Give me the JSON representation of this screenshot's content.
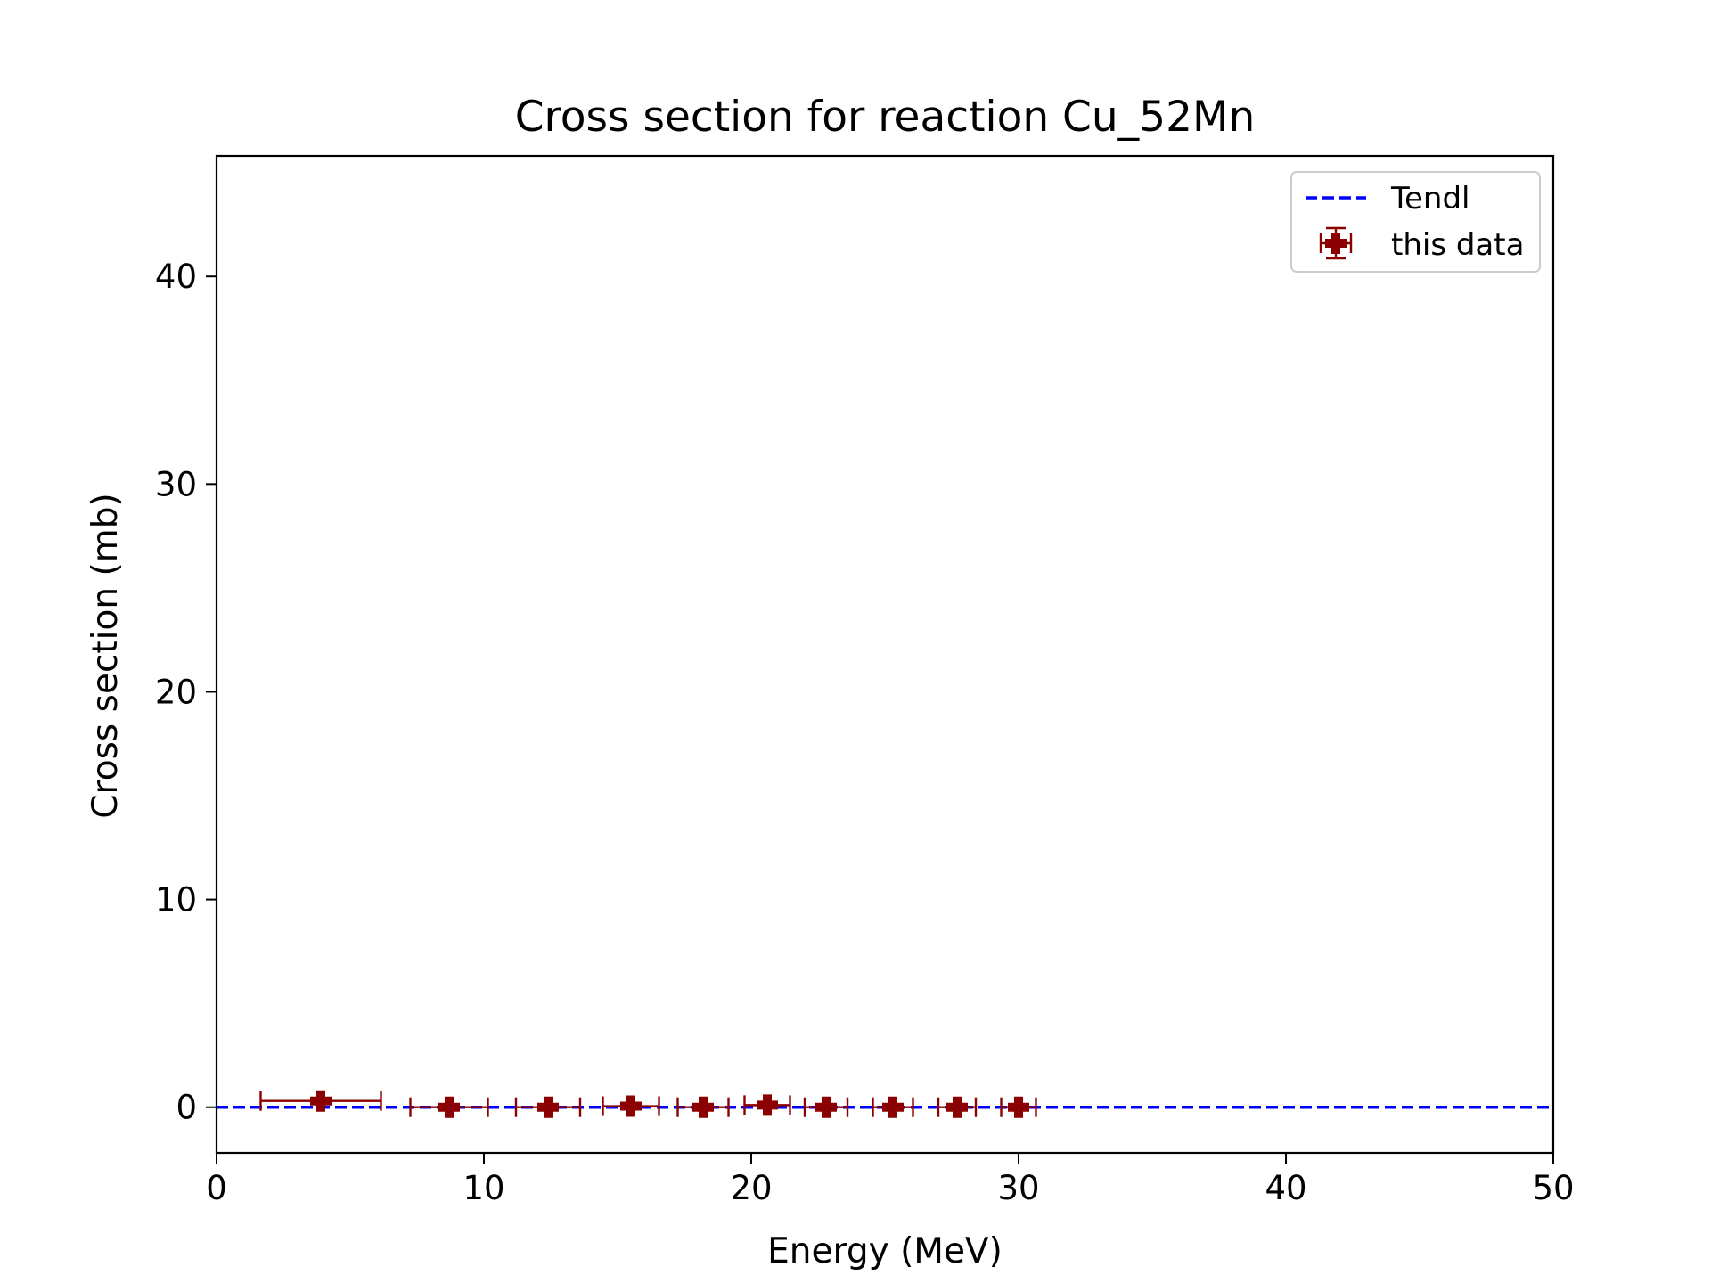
{
  "chart_data": {
    "type": "scatter",
    "title": "Cross section for reaction Cu_52Mn",
    "xlabel": "Energy (MeV)",
    "ylabel": "Cross section (mb)",
    "xlim": [
      0,
      50
    ],
    "ylim": [
      -2.2,
      45.8
    ],
    "xticks": [
      0,
      10,
      20,
      30,
      40,
      50
    ],
    "yticks": [
      0,
      10,
      20,
      30,
      40
    ],
    "grid": false,
    "legend_position": "top-right",
    "series": [
      {
        "name": "Tendl",
        "kind": "line",
        "style": "dashed",
        "color": "#0000ff",
        "x": [
          0,
          50
        ],
        "y": [
          0,
          0
        ]
      },
      {
        "name": "this data",
        "kind": "errorbar",
        "marker": "plus-filled",
        "color": "#8b0000",
        "x": [
          3.9,
          8.7,
          12.4,
          15.5,
          18.2,
          20.6,
          22.8,
          25.3,
          27.7,
          30.0
        ],
        "y": [
          0.3,
          0.0,
          0.0,
          0.05,
          0.0,
          0.1,
          0.0,
          0.0,
          0.0,
          0.0
        ],
        "xerr": [
          2.25,
          1.45,
          1.2,
          1.05,
          0.95,
          0.85,
          0.8,
          0.75,
          0.7,
          0.65
        ],
        "yerr": [
          0.05,
          0.03,
          0.03,
          0.03,
          0.03,
          0.03,
          0.03,
          0.03,
          0.03,
          0.03
        ]
      }
    ]
  }
}
